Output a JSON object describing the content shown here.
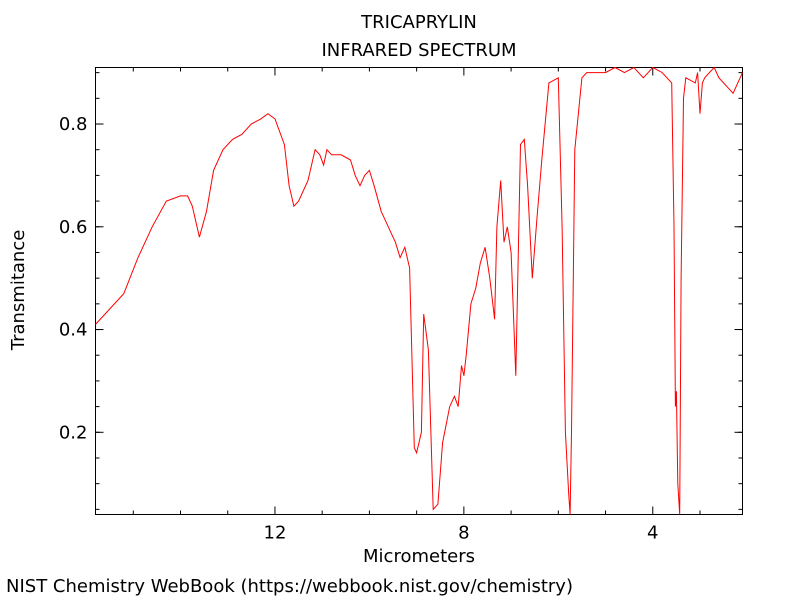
{
  "chart_data": {
    "type": "line",
    "title": "TRICAPRYLIN",
    "subtitle": "INFRARED SPECTRUM",
    "xlabel": "Micrometers",
    "ylabel": "Transmitance",
    "xlim": [
      15.8,
      2.1
    ],
    "ylim": [
      0.04,
      0.91
    ],
    "x_ticks": [
      12,
      8,
      4
    ],
    "y_ticks": [
      0.2,
      0.4,
      0.6,
      0.8
    ],
    "grid": false,
    "line_color": "#ff0000",
    "series": [
      {
        "x": [
          15.8,
          15.5,
          15.2,
          14.9,
          14.6,
          14.3,
          14.0,
          13.85,
          13.75,
          13.6,
          13.45,
          13.3,
          13.1,
          12.9,
          12.7,
          12.5,
          12.3,
          12.15,
          12.0,
          11.8,
          11.7,
          11.6,
          11.5,
          11.3,
          11.15,
          11.05,
          10.97,
          10.9,
          10.8,
          10.6,
          10.4,
          10.3,
          10.2,
          10.1,
          10.0,
          9.9,
          9.75,
          9.6,
          9.5,
          9.45,
          9.35,
          9.25,
          9.15,
          9.05,
          9.0,
          8.9,
          8.85,
          8.75,
          8.65,
          8.55,
          8.45,
          8.3,
          8.2,
          8.12,
          8.05,
          8.0,
          7.95,
          7.85,
          7.75,
          7.65,
          7.55,
          7.45,
          7.35,
          7.3,
          7.22,
          7.15,
          7.08,
          7.0,
          6.9,
          6.8,
          6.72,
          6.65,
          6.55,
          6.45,
          6.35,
          6.2,
          6.0,
          5.92,
          5.85,
          5.78,
          5.75,
          5.72,
          5.65,
          5.5,
          5.4,
          5.2,
          5.0,
          4.8,
          4.6,
          4.4,
          4.2,
          4.0,
          3.8,
          3.6,
          3.55,
          3.52,
          3.5,
          3.47,
          3.43,
          3.4,
          3.35,
          3.3,
          3.1,
          3.05,
          3.0,
          2.95,
          2.9,
          2.8,
          2.7,
          2.6,
          2.5,
          2.4,
          2.3,
          2.2,
          2.1
        ],
        "y": [
          0.41,
          0.44,
          0.47,
          0.54,
          0.6,
          0.65,
          0.66,
          0.66,
          0.64,
          0.58,
          0.63,
          0.71,
          0.75,
          0.77,
          0.78,
          0.8,
          0.81,
          0.82,
          0.81,
          0.76,
          0.68,
          0.64,
          0.65,
          0.69,
          0.75,
          0.74,
          0.72,
          0.75,
          0.74,
          0.74,
          0.73,
          0.7,
          0.68,
          0.7,
          0.71,
          0.68,
          0.63,
          0.6,
          0.58,
          0.57,
          0.54,
          0.56,
          0.52,
          0.17,
          0.16,
          0.2,
          0.43,
          0.36,
          0.05,
          0.06,
          0.18,
          0.25,
          0.27,
          0.25,
          0.33,
          0.31,
          0.35,
          0.45,
          0.48,
          0.53,
          0.56,
          0.5,
          0.42,
          0.6,
          0.69,
          0.57,
          0.6,
          0.55,
          0.31,
          0.76,
          0.77,
          0.68,
          0.5,
          0.62,
          0.73,
          0.88,
          0.89,
          0.6,
          0.2,
          0.08,
          0.04,
          0.2,
          0.75,
          0.89,
          0.9,
          0.9,
          0.9,
          0.91,
          0.9,
          0.91,
          0.89,
          0.91,
          0.9,
          0.88,
          0.6,
          0.25,
          0.28,
          0.1,
          0.04,
          0.5,
          0.85,
          0.89,
          0.88,
          0.9,
          0.82,
          0.88,
          0.89,
          0.9,
          0.91,
          0.89,
          0.88,
          0.87,
          0.86,
          0.88,
          0.9
        ]
      }
    ]
  },
  "credit": "NIST Chemistry WebBook (https://webbook.nist.gov/chemistry)"
}
